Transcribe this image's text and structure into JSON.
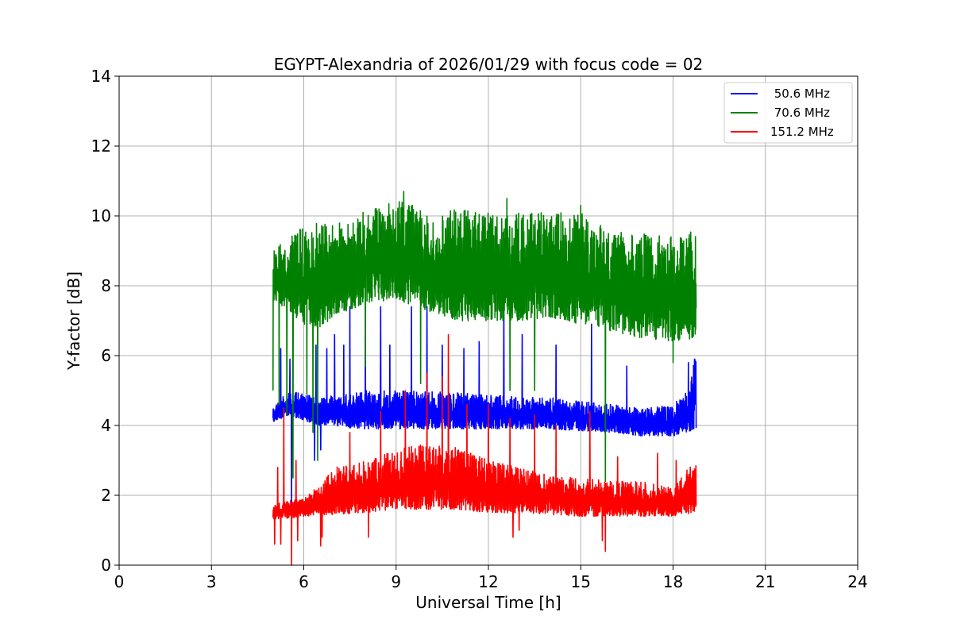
{
  "chart_data": {
    "type": "line",
    "title": "EGYPT-Alexandria of 2026/01/29 with focus code = 02",
    "xlabel": "Universal Time [h]",
    "ylabel": "Y-factor [dB]",
    "xlim": [
      0,
      24
    ],
    "ylim": [
      0,
      14
    ],
    "xticks": [
      0,
      3,
      6,
      9,
      12,
      15,
      18,
      21,
      24
    ],
    "yticks": [
      0,
      2,
      4,
      6,
      8,
      10,
      12,
      14
    ],
    "grid": true,
    "legend_position": "top-right",
    "x_range_of_data": [
      5.0,
      18.75
    ],
    "series": [
      {
        "name": " 50.6 MHz",
        "color": "#0000ff",
        "baseline": [
          [
            5.0,
            4.1
          ],
          [
            5.5,
            4.3
          ],
          [
            6.5,
            4.0
          ],
          [
            8.0,
            3.9
          ],
          [
            10.0,
            3.9
          ],
          [
            12.0,
            3.9
          ],
          [
            14.0,
            3.9
          ],
          [
            16.0,
            3.8
          ],
          [
            17.0,
            3.7
          ],
          [
            18.0,
            3.7
          ],
          [
            18.75,
            3.9
          ]
        ],
        "upper": [
          [
            5.0,
            4.5
          ],
          [
            5.5,
            5.0
          ],
          [
            6.5,
            4.8
          ],
          [
            8.0,
            5.0
          ],
          [
            10.0,
            5.0
          ],
          [
            12.0,
            4.9
          ],
          [
            14.0,
            4.8
          ],
          [
            16.0,
            4.6
          ],
          [
            17.0,
            4.5
          ],
          [
            18.0,
            4.6
          ],
          [
            18.5,
            5.0
          ],
          [
            18.75,
            6.2
          ]
        ],
        "spikes_high": [
          [
            5.25,
            6.2
          ],
          [
            5.55,
            5.9
          ],
          [
            6.4,
            6.3
          ],
          [
            6.75,
            6.2
          ],
          [
            7.0,
            6.6
          ],
          [
            7.3,
            6.3
          ],
          [
            7.5,
            7.4
          ],
          [
            8.0,
            6.6
          ],
          [
            8.5,
            7.4
          ],
          [
            8.8,
            6.3
          ],
          [
            9.5,
            7.4
          ],
          [
            10.0,
            7.4
          ],
          [
            10.5,
            6.3
          ],
          [
            11.2,
            6.2
          ],
          [
            11.7,
            6.4
          ],
          [
            12.5,
            7.4
          ],
          [
            13.1,
            6.6
          ],
          [
            14.2,
            6.3
          ],
          [
            15.35,
            6.9
          ],
          [
            16.5,
            5.7
          ],
          [
            18.5,
            5.8
          ]
        ],
        "spikes_low": [
          [
            5.6,
            1.7
          ],
          [
            6.35,
            3.0
          ],
          [
            6.55,
            3.3
          ]
        ]
      },
      {
        "name": " 70.6 MHz",
        "color": "#008000",
        "baseline": [
          [
            5.0,
            7.6
          ],
          [
            5.5,
            7.3
          ],
          [
            6.0,
            6.9
          ],
          [
            6.5,
            6.8
          ],
          [
            7.0,
            7.1
          ],
          [
            8.0,
            7.5
          ],
          [
            9.0,
            7.6
          ],
          [
            10.0,
            7.3
          ],
          [
            11.0,
            7.0
          ],
          [
            12.0,
            7.0
          ],
          [
            13.0,
            7.0
          ],
          [
            14.0,
            7.1
          ],
          [
            15.0,
            6.9
          ],
          [
            16.0,
            6.7
          ],
          [
            16.5,
            6.6
          ],
          [
            17.0,
            6.5
          ],
          [
            18.0,
            6.4
          ],
          [
            18.75,
            6.5
          ]
        ],
        "upper": [
          [
            5.0,
            9.0
          ],
          [
            5.5,
            9.4
          ],
          [
            6.0,
            9.7
          ],
          [
            6.5,
            9.8
          ],
          [
            7.0,
            9.8
          ],
          [
            7.5,
            9.8
          ],
          [
            8.0,
            10.2
          ],
          [
            8.5,
            10.3
          ],
          [
            9.0,
            10.5
          ],
          [
            9.5,
            10.4
          ],
          [
            10.0,
            10.0
          ],
          [
            11.0,
            10.2
          ],
          [
            12.0,
            10.1
          ],
          [
            13.0,
            10.1
          ],
          [
            14.0,
            10.1
          ],
          [
            15.0,
            10.1
          ],
          [
            16.0,
            9.6
          ],
          [
            16.5,
            9.5
          ],
          [
            17.0,
            9.5
          ],
          [
            18.0,
            9.4
          ],
          [
            18.75,
            9.6
          ]
        ],
        "spikes_high": [
          [
            9.25,
            10.7
          ],
          [
            12.6,
            10.5
          ],
          [
            15.0,
            10.3
          ]
        ],
        "spikes_low": [
          [
            5.0,
            5.0
          ],
          [
            5.2,
            4.6
          ],
          [
            5.45,
            4.3
          ],
          [
            5.65,
            2.5
          ],
          [
            6.1,
            4.9
          ],
          [
            6.3,
            3.8
          ],
          [
            6.45,
            3.0
          ],
          [
            8.0,
            5.7
          ],
          [
            9.8,
            5.2
          ],
          [
            12.7,
            5.0
          ],
          [
            13.5,
            5.0
          ],
          [
            15.8,
            2.4
          ],
          [
            18.0,
            5.8
          ]
        ]
      },
      {
        "name": "151.2 MHz",
        "color": "#ff0000",
        "baseline": [
          [
            5.0,
            1.3
          ],
          [
            6.0,
            1.4
          ],
          [
            7.0,
            1.45
          ],
          [
            8.0,
            1.5
          ],
          [
            9.0,
            1.6
          ],
          [
            10.0,
            1.6
          ],
          [
            11.0,
            1.6
          ],
          [
            12.0,
            1.5
          ],
          [
            13.0,
            1.5
          ],
          [
            14.0,
            1.45
          ],
          [
            15.0,
            1.4
          ],
          [
            16.0,
            1.4
          ],
          [
            17.0,
            1.4
          ],
          [
            18.0,
            1.4
          ],
          [
            18.75,
            1.5
          ]
        ],
        "upper": [
          [
            5.0,
            1.8
          ],
          [
            6.0,
            1.9
          ],
          [
            6.5,
            2.3
          ],
          [
            7.0,
            2.8
          ],
          [
            8.0,
            3.0
          ],
          [
            9.0,
            3.3
          ],
          [
            10.0,
            3.5
          ],
          [
            11.0,
            3.4
          ],
          [
            12.0,
            3.0
          ],
          [
            13.0,
            2.8
          ],
          [
            14.0,
            2.6
          ],
          [
            15.0,
            2.5
          ],
          [
            16.0,
            2.4
          ],
          [
            17.0,
            2.4
          ],
          [
            18.0,
            2.2
          ],
          [
            18.75,
            3.1
          ]
        ],
        "spikes_high": [
          [
            5.15,
            2.8
          ],
          [
            5.35,
            4.5
          ],
          [
            5.75,
            3.0
          ],
          [
            7.5,
            3.8
          ],
          [
            8.1,
            5.4
          ],
          [
            8.5,
            4.4
          ],
          [
            9.3,
            5.0
          ],
          [
            10.0,
            5.5
          ],
          [
            10.5,
            5.4
          ],
          [
            10.7,
            6.6
          ],
          [
            11.3,
            4.6
          ],
          [
            12.0,
            4.6
          ],
          [
            12.7,
            4.2
          ],
          [
            13.5,
            4.3
          ],
          [
            14.2,
            4.0
          ],
          [
            15.3,
            4.4
          ],
          [
            16.2,
            3.1
          ],
          [
            17.5,
            3.2
          ],
          [
            18.1,
            3.0
          ]
        ],
        "spikes_low": [
          [
            5.05,
            0.6
          ],
          [
            5.25,
            0.6
          ],
          [
            5.6,
            0.0
          ],
          [
            5.8,
            0.7
          ],
          [
            6.55,
            0.55
          ],
          [
            6.6,
            0.8
          ],
          [
            8.1,
            0.8
          ],
          [
            12.8,
            0.8
          ],
          [
            13.0,
            1.0
          ],
          [
            15.7,
            0.7
          ],
          [
            15.8,
            0.4
          ]
        ]
      }
    ]
  }
}
